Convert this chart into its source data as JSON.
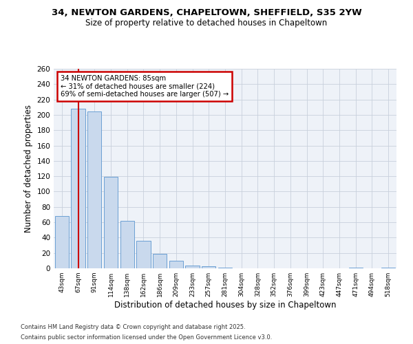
{
  "title1": "34, NEWTON GARDENS, CHAPELTOWN, SHEFFIELD, S35 2YW",
  "title2": "Size of property relative to detached houses in Chapeltown",
  "xlabel": "Distribution of detached houses by size in Chapeltown",
  "ylabel": "Number of detached properties",
  "categories": [
    "43sqm",
    "67sqm",
    "91sqm",
    "114sqm",
    "138sqm",
    "162sqm",
    "186sqm",
    "209sqm",
    "233sqm",
    "257sqm",
    "281sqm",
    "304sqm",
    "328sqm",
    "352sqm",
    "376sqm",
    "399sqm",
    "423sqm",
    "447sqm",
    "471sqm",
    "494sqm",
    "518sqm"
  ],
  "values": [
    68,
    208,
    204,
    119,
    62,
    36,
    19,
    10,
    4,
    3,
    1,
    0,
    0,
    0,
    0,
    0,
    0,
    0,
    1,
    0,
    1
  ],
  "bar_color": "#c9d9ed",
  "bar_edge_color": "#6b9fd4",
  "annotation_box_color": "#ffffff",
  "annotation_box_edge": "#cc0000",
  "vline_color": "#cc0000",
  "vline_x": 1.5,
  "ylim": [
    0,
    260
  ],
  "yticks": [
    0,
    20,
    40,
    60,
    80,
    100,
    120,
    140,
    160,
    180,
    200,
    220,
    240,
    260
  ],
  "footnote1": "Contains HM Land Registry data © Crown copyright and database right 2025.",
  "footnote2": "Contains public sector information licensed under the Open Government Licence v3.0.",
  "bg_color": "#eef2f8",
  "grid_color": "#c8d0dc"
}
